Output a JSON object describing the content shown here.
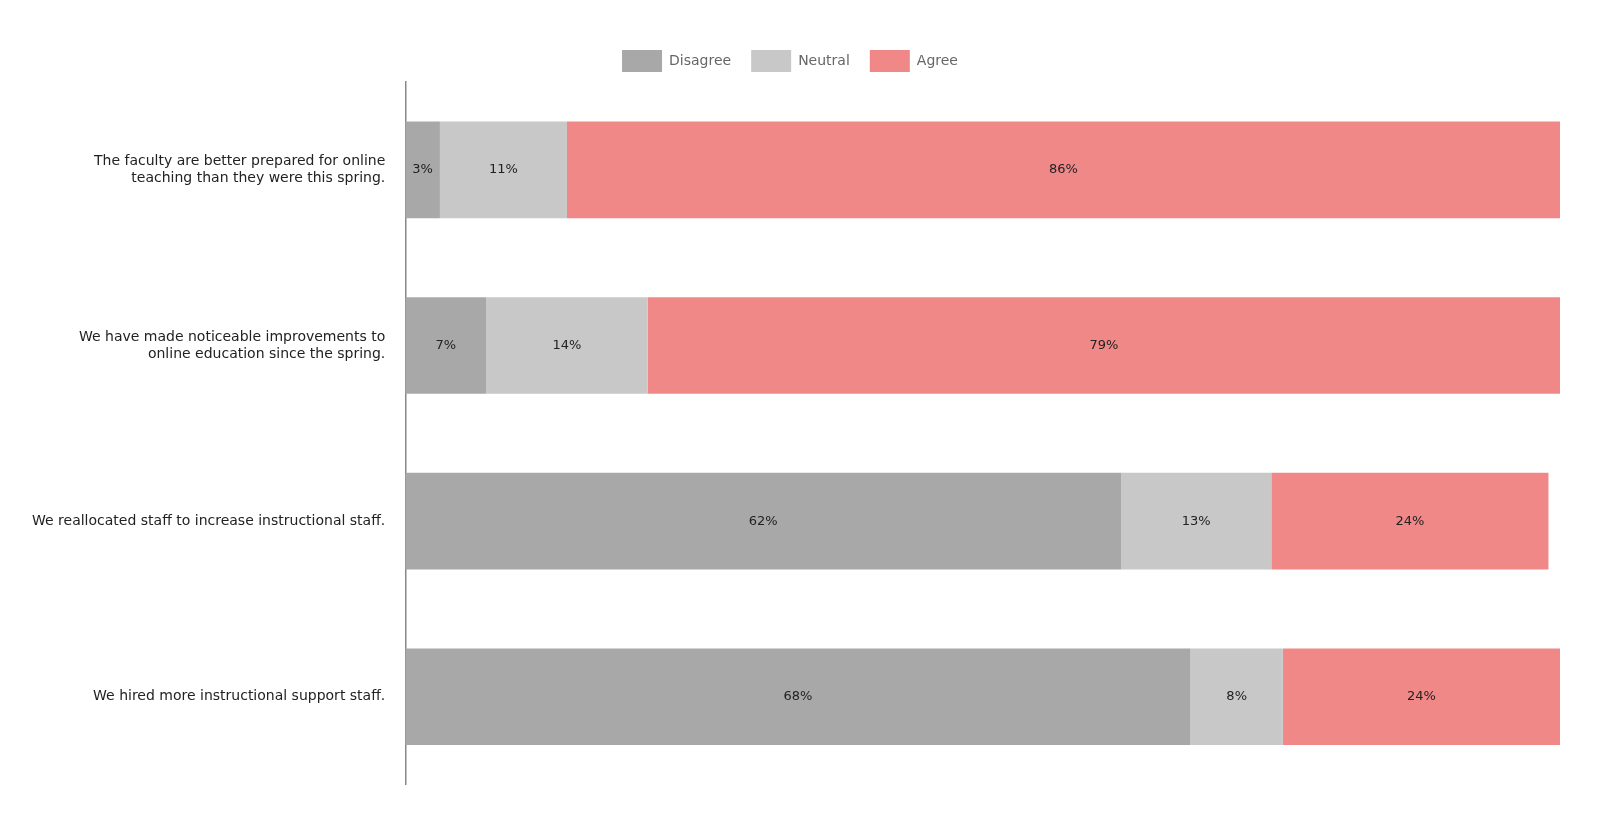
{
  "chart_data": {
    "type": "bar",
    "orientation": "horizontal",
    "stacked": true,
    "categories": [
      "We hired more instructional support staff.",
      "We reallocated staff to increase instructional staff.",
      "We have made noticeable improvements to\nonline education since the spring.",
      "The faculty are better prepared for online\nteaching than they were this spring."
    ],
    "series": [
      {
        "name": "Disagree",
        "color": "#a8a8a8",
        "values": [
          68,
          62,
          7,
          3
        ],
        "value_labels": [
          "68%",
          "62%",
          "7%",
          "3%"
        ]
      },
      {
        "name": "Neutral",
        "color": "#c8c8c8",
        "values": [
          8,
          13,
          14,
          11
        ],
        "value_labels": [
          "8%",
          "13%",
          "14%",
          "11%"
        ]
      },
      {
        "name": "Agree",
        "color": "#f08888",
        "values": [
          24,
          24,
          79,
          86
        ],
        "value_labels": [
          "24%",
          "24%",
          "79%",
          "86%"
        ]
      }
    ],
    "xlim": [
      0,
      100
    ],
    "grid": false,
    "legend": "top",
    "data_labels": true,
    "tick_labels": "y"
  }
}
